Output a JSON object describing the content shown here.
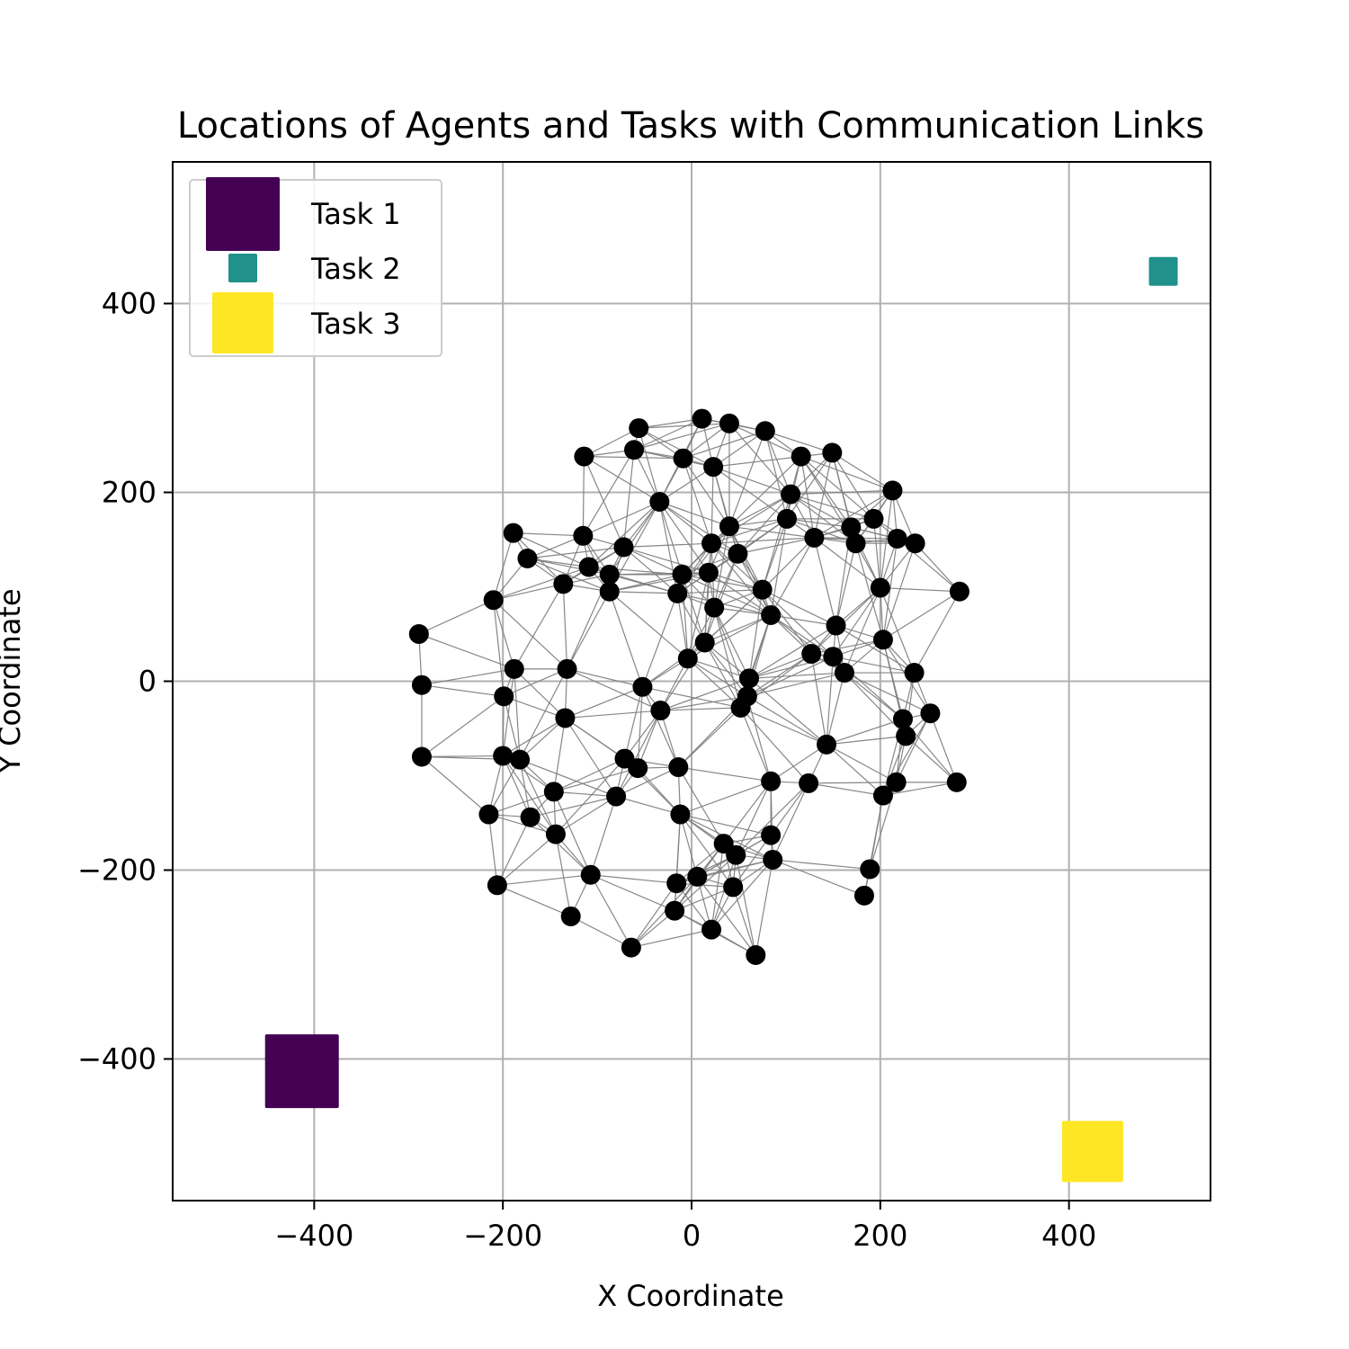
{
  "chart_data": {
    "type": "scatter",
    "title": "Locations of Agents and Tasks with Communication Links",
    "xlabel": "X Coordinate",
    "ylabel": "Y Coordinate",
    "xlim": [
      -550,
      550
    ],
    "ylim": [
      -550,
      550
    ],
    "grid": true,
    "xticks": [
      -400,
      -200,
      0,
      200,
      400
    ],
    "yticks": [
      -400,
      -200,
      0,
      200,
      400
    ],
    "xtick_labels": [
      "−400",
      "−200",
      "0",
      "200",
      "400"
    ],
    "ytick_labels": [
      "−400",
      "−200",
      "0",
      "200",
      "400"
    ],
    "legend_position": "top-left",
    "edge_color": "#808080",
    "agent_color": "#000000",
    "communication_range": 110,
    "tasks": [
      {
        "name": "Task 1",
        "x": -413,
        "y": -413,
        "color": "#440154",
        "marker_size": "large"
      },
      {
        "name": "Task 2",
        "x": 500,
        "y": 434,
        "color": "#21918c",
        "marker_size": "small"
      },
      {
        "name": "Task 3",
        "x": 425,
        "y": -498,
        "color": "#fde725",
        "marker_size": "medium"
      }
    ],
    "agents": [
      [
        11,
        278
      ],
      [
        40,
        273
      ],
      [
        -56,
        268
      ],
      [
        78,
        265
      ],
      [
        -61,
        245
      ],
      [
        -114,
        238
      ],
      [
        116,
        238
      ],
      [
        149,
        242
      ],
      [
        -9,
        236
      ],
      [
        23,
        227
      ],
      [
        213,
        202
      ],
      [
        105,
        198
      ],
      [
        -34,
        190
      ],
      [
        101,
        172
      ],
      [
        193,
        172
      ],
      [
        169,
        163
      ],
      [
        40,
        164
      ],
      [
        -189,
        157
      ],
      [
        -115,
        154
      ],
      [
        218,
        151
      ],
      [
        130,
        152
      ],
      [
        174,
        146
      ],
      [
        237,
        146
      ],
      [
        21,
        146
      ],
      [
        -72,
        142
      ],
      [
        49,
        135
      ],
      [
        -174,
        130
      ],
      [
        -109,
        121
      ],
      [
        18,
        115
      ],
      [
        -87,
        113
      ],
      [
        -10,
        113
      ],
      [
        -136,
        103
      ],
      [
        200,
        99
      ],
      [
        -87,
        95
      ],
      [
        284,
        95
      ],
      [
        -15,
        93
      ],
      [
        75,
        97
      ],
      [
        -210,
        86
      ],
      [
        24,
        78
      ],
      [
        84,
        70
      ],
      [
        153,
        59
      ],
      [
        -289,
        50
      ],
      [
        203,
        44
      ],
      [
        14,
        41
      ],
      [
        127,
        29
      ],
      [
        150,
        26
      ],
      [
        -4,
        24
      ],
      [
        -188,
        13
      ],
      [
        -132,
        13
      ],
      [
        236,
        9
      ],
      [
        162,
        9
      ],
      [
        61,
        3
      ],
      [
        -286,
        -4
      ],
      [
        -52,
        -6
      ],
      [
        59,
        -16
      ],
      [
        -199,
        -16
      ],
      [
        -33,
        -31
      ],
      [
        253,
        -34
      ],
      [
        52,
        -28
      ],
      [
        -134,
        -39
      ],
      [
        224,
        -40
      ],
      [
        227,
        -58
      ],
      [
        143,
        -67
      ],
      [
        -286,
        -80
      ],
      [
        -200,
        -79
      ],
      [
        -182,
        -83
      ],
      [
        -71,
        -82
      ],
      [
        -57,
        -92
      ],
      [
        -14,
        -91
      ],
      [
        84,
        -106
      ],
      [
        124,
        -108
      ],
      [
        217,
        -107
      ],
      [
        281,
        -107
      ],
      [
        -146,
        -117
      ],
      [
        203,
        -121
      ],
      [
        -80,
        -122
      ],
      [
        -215,
        -141
      ],
      [
        -171,
        -144
      ],
      [
        -12,
        -141
      ],
      [
        -144,
        -162
      ],
      [
        84,
        -163
      ],
      [
        34,
        -172
      ],
      [
        47,
        -184
      ],
      [
        86,
        -189
      ],
      [
        189,
        -199
      ],
      [
        -107,
        -205
      ],
      [
        6,
        -207
      ],
      [
        -16,
        -214
      ],
      [
        44,
        -218
      ],
      [
        -206,
        -216
      ],
      [
        183,
        -227
      ],
      [
        -128,
        -249
      ],
      [
        -18,
        -243
      ],
      [
        21,
        -263
      ],
      [
        -64,
        -282
      ],
      [
        68,
        -290
      ]
    ]
  }
}
